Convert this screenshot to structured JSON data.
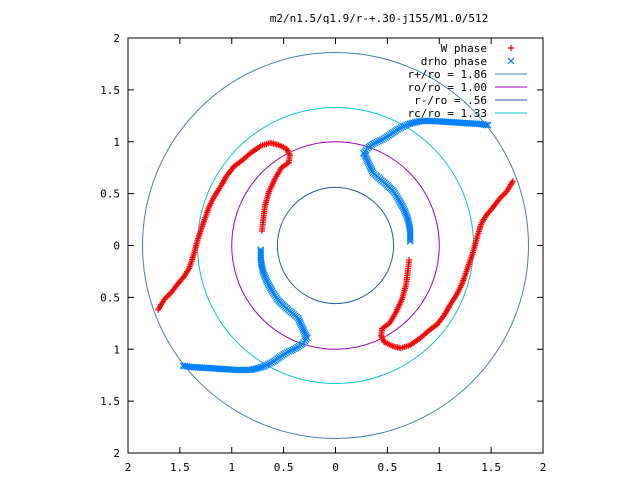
{
  "chart_data": {
    "type": "scatter",
    "title": "m2/n1.5/q1.9/r-+.30-j155/M1.0/512",
    "xlim": [
      -2,
      2
    ],
    "ylim": [
      -2,
      2
    ],
    "x_ticks": [
      -2,
      -1.5,
      -1,
      -0.5,
      0,
      0.5,
      1,
      1.5,
      2
    ],
    "y_ticks": [
      -2,
      -1.5,
      -1,
      -0.5,
      0,
      0.5,
      1,
      1.5,
      2
    ],
    "x_tick_labels": [
      "2",
      "1.5",
      "1",
      "0.5",
      "0",
      "0.5",
      "1",
      "1.5",
      "2"
    ],
    "y_tick_labels": [
      "2",
      "1.5",
      "1",
      "0.5",
      "0",
      "0.5",
      "1",
      "1.5",
      "2"
    ],
    "legend": {
      "position": "top-right",
      "entries": [
        {
          "label": "W phase",
          "marker": "+",
          "color": "#ff0000"
        },
        {
          "label": "drho phase",
          "marker": "x",
          "color": "#0080ff"
        },
        {
          "label": "r+/ro = 1.86",
          "marker": "line",
          "color": "#4080c0"
        },
        {
          "label": "ro/ro = 1.00",
          "marker": "line",
          "color": "#a000c0"
        },
        {
          "label": "r-/ro = .56",
          "marker": "line",
          "color": "#2060b0"
        },
        {
          "label": "rc/ro = 1.33",
          "marker": "line",
          "color": "#00c8d8"
        }
      ]
    },
    "circles": [
      {
        "r": 1.86,
        "color": "#4080c0"
      },
      {
        "r": 1.0,
        "color": "#a000c0"
      },
      {
        "r": 0.56,
        "color": "#2060b0"
      },
      {
        "r": 1.33,
        "color": "#00c8d8"
      }
    ],
    "series": [
      {
        "name": "W phase",
        "marker": "+",
        "color": "#ff0000",
        "arms": [
          [
            [
              -0.47,
              0.93
            ],
            [
              -0.55,
              0.97
            ],
            [
              -0.63,
              0.99
            ],
            [
              -0.72,
              0.96
            ],
            [
              -0.82,
              0.89
            ],
            [
              -0.9,
              0.82
            ],
            [
              -0.98,
              0.76
            ],
            [
              -1.05,
              0.67
            ],
            [
              -1.1,
              0.58
            ],
            [
              -1.17,
              0.47
            ],
            [
              -1.22,
              0.37
            ],
            [
              -1.28,
              0.2
            ],
            [
              -1.33,
              0.05
            ],
            [
              -1.37,
              -0.1
            ],
            [
              -1.41,
              -0.22
            ],
            [
              -1.46,
              -0.3
            ],
            [
              -1.52,
              -0.37
            ],
            [
              -1.58,
              -0.45
            ],
            [
              -1.65,
              -0.52
            ],
            [
              -1.71,
              -0.62
            ]
          ],
          [
            [
              -0.47,
              0.93
            ],
            [
              -0.44,
              0.87
            ],
            [
              -0.45,
              0.8
            ],
            [
              -0.52,
              0.75
            ],
            [
              -0.58,
              0.65
            ],
            [
              -0.64,
              0.52
            ],
            [
              -0.68,
              0.38
            ],
            [
              -0.7,
              0.22
            ],
            [
              -0.71,
              0.14
            ]
          ],
          [
            [
              0.47,
              -0.93
            ],
            [
              0.55,
              -0.97
            ],
            [
              0.63,
              -0.99
            ],
            [
              0.72,
              -0.96
            ],
            [
              0.82,
              -0.89
            ],
            [
              0.9,
              -0.82
            ],
            [
              0.98,
              -0.76
            ],
            [
              1.05,
              -0.67
            ],
            [
              1.1,
              -0.58
            ],
            [
              1.17,
              -0.47
            ],
            [
              1.22,
              -0.37
            ],
            [
              1.28,
              -0.2
            ],
            [
              1.33,
              -0.05
            ],
            [
              1.37,
              0.1
            ],
            [
              1.41,
              0.22
            ],
            [
              1.46,
              0.3
            ],
            [
              1.52,
              0.37
            ],
            [
              1.58,
              0.45
            ],
            [
              1.65,
              0.52
            ],
            [
              1.71,
              0.62
            ]
          ],
          [
            [
              0.47,
              -0.93
            ],
            [
              0.44,
              -0.87
            ],
            [
              0.45,
              -0.8
            ],
            [
              0.52,
              -0.75
            ],
            [
              0.58,
              -0.65
            ],
            [
              0.64,
              -0.52
            ],
            [
              0.68,
              -0.38
            ],
            [
              0.7,
              -0.22
            ],
            [
              0.71,
              -0.14
            ]
          ]
        ]
      },
      {
        "name": "drho phase",
        "marker": "x",
        "color": "#0080ff",
        "arms": [
          [
            [
              0.27,
              0.89
            ],
            [
              0.32,
              0.95
            ],
            [
              0.38,
              0.99
            ],
            [
              0.45,
              1.02
            ],
            [
              0.53,
              1.07
            ],
            [
              0.6,
              1.12
            ],
            [
              0.7,
              1.17
            ],
            [
              0.82,
              1.2
            ],
            [
              0.95,
              1.2
            ],
            [
              1.1,
              1.19
            ],
            [
              1.25,
              1.18
            ],
            [
              1.4,
              1.17
            ],
            [
              1.47,
              1.16
            ]
          ],
          [
            [
              0.28,
              0.88
            ],
            [
              0.36,
              0.7
            ],
            [
              0.43,
              0.64
            ],
            [
              0.5,
              0.58
            ],
            [
              0.56,
              0.52
            ],
            [
              0.61,
              0.44
            ],
            [
              0.66,
              0.35
            ],
            [
              0.7,
              0.25
            ],
            [
              0.72,
              0.14
            ],
            [
              0.72,
              0.04
            ]
          ],
          [
            [
              -0.27,
              -0.89
            ],
            [
              -0.32,
              -0.95
            ],
            [
              -0.38,
              -0.99
            ],
            [
              -0.45,
              -1.02
            ],
            [
              -0.53,
              -1.07
            ],
            [
              -0.6,
              -1.12
            ],
            [
              -0.7,
              -1.17
            ],
            [
              -0.82,
              -1.2
            ],
            [
              -0.95,
              -1.2
            ],
            [
              -1.1,
              -1.19
            ],
            [
              -1.25,
              -1.18
            ],
            [
              -1.4,
              -1.17
            ],
            [
              -1.47,
              -1.16
            ]
          ],
          [
            [
              -0.28,
              -0.88
            ],
            [
              -0.36,
              -0.7
            ],
            [
              -0.43,
              -0.64
            ],
            [
              -0.5,
              -0.58
            ],
            [
              -0.56,
              -0.52
            ],
            [
              -0.61,
              -0.44
            ],
            [
              -0.66,
              -0.35
            ],
            [
              -0.7,
              -0.25
            ],
            [
              -0.72,
              -0.14
            ],
            [
              -0.72,
              -0.04
            ]
          ]
        ]
      }
    ]
  }
}
